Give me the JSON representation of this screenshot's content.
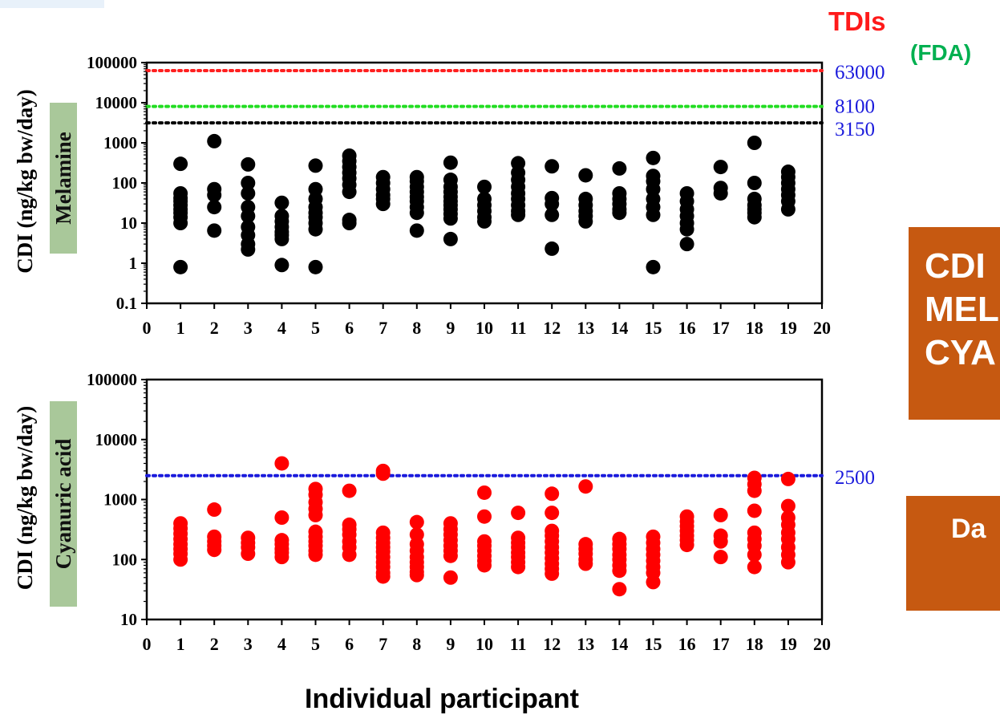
{
  "header": {
    "tdis_label": "TDIs",
    "fda_label": "(FDA)"
  },
  "x_axis_title": "Individual participant",
  "side_boxes": {
    "box1_lines": [
      "CDI",
      "MEL",
      "CYA"
    ],
    "box2_text": "Da"
  },
  "colors": {
    "melamine_points": "#000000",
    "cyanuric_points": "#ff0000",
    "tdi_63000": "#ff2020",
    "tdi_8100": "#22dd22",
    "tdi_3150": "#000000",
    "tdi_2500": "#1a1adc",
    "threshold_text": "#1a1adc",
    "label_bg": "#a9c89a",
    "box_bg": "#c65911"
  },
  "chart_data": [
    {
      "type": "scatter",
      "panel_label": "Melamine",
      "ylabel": "CDI (ng/kg bw/day)",
      "yscale": "log",
      "ylim": [
        0.1,
        100000
      ],
      "xlim": [
        0,
        20
      ],
      "xticks": [
        0,
        1,
        2,
        3,
        4,
        5,
        6,
        7,
        8,
        9,
        10,
        11,
        12,
        13,
        14,
        15,
        16,
        17,
        18,
        19,
        20
      ],
      "yticks": [
        0.1,
        1,
        10,
        100,
        1000,
        10000,
        100000
      ],
      "ytick_labels": [
        "0.1",
        "1",
        "10",
        "100",
        "1000",
        "10000",
        "100000"
      ],
      "reference_lines": [
        {
          "value": 63000,
          "label": "63000",
          "color": "#ff2020"
        },
        {
          "value": 8100,
          "label": "8100",
          "color": "#22dd22"
        },
        {
          "value": 3150,
          "label": "3150",
          "color": "#000000"
        }
      ],
      "points": [
        {
          "x": 1,
          "values": [
            300,
            55,
            42,
            35,
            28,
            22,
            18,
            14,
            10,
            0.8
          ]
        },
        {
          "x": 2,
          "values": [
            1100,
            70,
            50,
            25,
            6.5
          ]
        },
        {
          "x": 3,
          "values": [
            290,
            100,
            55,
            25,
            15,
            8,
            5,
            3,
            2.2
          ]
        },
        {
          "x": 4,
          "values": [
            32,
            15,
            11,
            8,
            6,
            5,
            4,
            0.9
          ]
        },
        {
          "x": 5,
          "values": [
            270,
            70,
            40,
            25,
            18,
            14,
            10,
            7,
            0.8
          ]
        },
        {
          "x": 6,
          "values": [
            480,
            350,
            250,
            180,
            130,
            90,
            60,
            12,
            10
          ]
        },
        {
          "x": 7,
          "values": [
            140,
            100,
            70,
            50,
            40,
            30
          ]
        },
        {
          "x": 8,
          "values": [
            140,
            110,
            80,
            60,
            45,
            35,
            25,
            18,
            6.5
          ]
        },
        {
          "x": 9,
          "values": [
            320,
            120,
            80,
            60,
            45,
            35,
            28,
            22,
            17,
            13,
            4
          ]
        },
        {
          "x": 10,
          "values": [
            80,
            40,
            28,
            20,
            14,
            11
          ]
        },
        {
          "x": 11,
          "values": [
            310,
            180,
            120,
            80,
            55,
            40,
            28,
            20,
            16
          ]
        },
        {
          "x": 12,
          "values": [
            260,
            42,
            30,
            16,
            2.3
          ]
        },
        {
          "x": 13,
          "values": [
            155,
            40,
            28,
            20,
            15,
            11
          ]
        },
        {
          "x": 14,
          "values": [
            230,
            55,
            40,
            30,
            22,
            18
          ]
        },
        {
          "x": 15,
          "values": [
            420,
            150,
            110,
            70,
            40,
            25,
            16,
            0.8
          ]
        },
        {
          "x": 16,
          "values": [
            55,
            35,
            22,
            15,
            10,
            7,
            3
          ]
        },
        {
          "x": 17,
          "values": [
            250,
            75,
            55
          ]
        },
        {
          "x": 18,
          "values": [
            1000,
            100,
            40,
            28,
            22,
            18,
            14
          ]
        },
        {
          "x": 19,
          "values": [
            190,
            140,
            100,
            70,
            50,
            35,
            22
          ]
        }
      ]
    },
    {
      "type": "scatter",
      "panel_label": "Cyanuric acid",
      "ylabel": "CDI (ng/kg bw/day)",
      "yscale": "log",
      "ylim": [
        10,
        100000
      ],
      "xlim": [
        0,
        20
      ],
      "xticks": [
        0,
        1,
        2,
        3,
        4,
        5,
        6,
        7,
        8,
        9,
        10,
        11,
        12,
        13,
        14,
        15,
        16,
        17,
        18,
        19,
        20
      ],
      "yticks": [
        10,
        100,
        1000,
        10000,
        100000
      ],
      "ytick_labels": [
        "10",
        "100",
        "1000",
        "10000",
        "100000"
      ],
      "reference_lines": [
        {
          "value": 2500,
          "label": "2500",
          "color": "#1a1adc"
        }
      ],
      "points": [
        {
          "x": 1,
          "values": [
            400,
            330,
            270,
            220,
            180,
            150,
            125,
            100
          ]
        },
        {
          "x": 2,
          "values": [
            680,
            240,
            200,
            170,
            145
          ]
        },
        {
          "x": 3,
          "values": [
            230,
            190,
            160,
            125
          ]
        },
        {
          "x": 4,
          "values": [
            4000,
            500,
            210,
            180,
            150,
            130,
            110
          ]
        },
        {
          "x": 5,
          "values": [
            1500,
            1200,
            900,
            700,
            550,
            290,
            240,
            200,
            170,
            140,
            120
          ]
        },
        {
          "x": 6,
          "values": [
            1400,
            380,
            320,
            260,
            200,
            160,
            120
          ]
        },
        {
          "x": 7,
          "values": [
            3000,
            2700,
            280,
            230,
            190,
            160,
            135,
            110,
            90,
            75,
            60,
            52
          ]
        },
        {
          "x": 8,
          "values": [
            420,
            260,
            180,
            140,
            110,
            90,
            75,
            62,
            55
          ]
        },
        {
          "x": 9,
          "values": [
            400,
            320,
            260,
            210,
            170,
            140,
            115,
            50
          ]
        },
        {
          "x": 10,
          "values": [
            1300,
            520,
            200,
            170,
            140,
            115,
            95,
            80
          ]
        },
        {
          "x": 11,
          "values": [
            600,
            230,
            190,
            160,
            130,
            110,
            90,
            75
          ]
        },
        {
          "x": 12,
          "values": [
            1250,
            600,
            300,
            250,
            200,
            160,
            130,
            105,
            85,
            70,
            58
          ]
        },
        {
          "x": 13,
          "values": [
            1650,
            180,
            150,
            125,
            100,
            85
          ]
        },
        {
          "x": 14,
          "values": [
            220,
            180,
            150,
            120,
            100,
            80,
            65,
            32
          ]
        },
        {
          "x": 15,
          "values": [
            240,
            190,
            150,
            120,
            95,
            75,
            60,
            42
          ]
        },
        {
          "x": 16,
          "values": [
            520,
            430,
            360,
            300,
            250,
            210,
            175
          ]
        },
        {
          "x": 17,
          "values": [
            550,
            250,
            200,
            110
          ]
        },
        {
          "x": 18,
          "values": [
            2300,
            1800,
            1400,
            650,
            280,
            220,
            170,
            120,
            75
          ]
        },
        {
          "x": 19,
          "values": [
            2200,
            780,
            500,
            380,
            280,
            220,
            160,
            120,
            90
          ]
        }
      ]
    }
  ]
}
